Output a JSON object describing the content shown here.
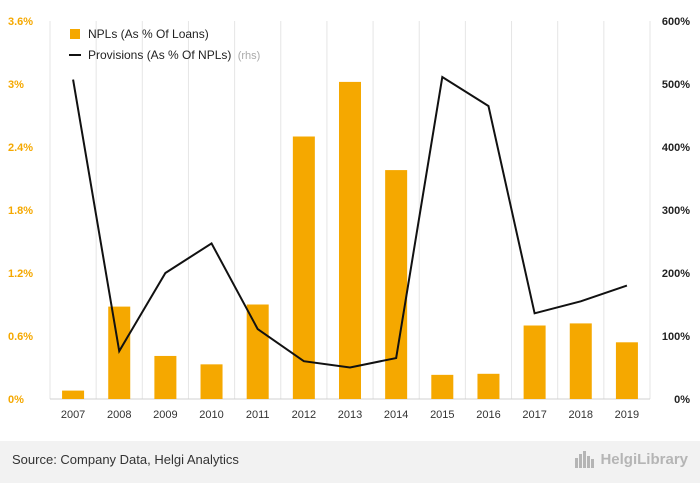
{
  "chart_data": {
    "type": "bar+line",
    "categories": [
      "2007",
      "2008",
      "2009",
      "2010",
      "2011",
      "2012",
      "2013",
      "2014",
      "2015",
      "2016",
      "2017",
      "2018",
      "2019"
    ],
    "series": [
      {
        "name": "NPLs (As % Of Loans)",
        "type": "bar",
        "axis": "left",
        "color": "#f5a800",
        "values": [
          0.08,
          0.88,
          0.41,
          0.33,
          0.9,
          2.5,
          3.02,
          2.18,
          0.23,
          0.24,
          0.7,
          0.72,
          0.54
        ]
      },
      {
        "name": "Provisions (As % Of NPLs)",
        "name_suffix": "(rhs)",
        "type": "line",
        "axis": "right",
        "color": "#111111",
        "values": [
          507,
          76,
          200,
          247,
          111,
          60,
          50,
          65,
          511,
          465,
          136,
          155,
          180
        ]
      }
    ],
    "y_left": {
      "min": 0,
      "max": 3.6,
      "ticks": [
        "0%",
        "0.6%",
        "1.2%",
        "1.8%",
        "2.4%",
        "3%",
        "3.6%"
      ]
    },
    "y_right": {
      "min": 0,
      "max": 600,
      "ticks": [
        "0%",
        "100%",
        "200%",
        "300%",
        "400%",
        "500%",
        "600%"
      ]
    },
    "legend_position": "top-left",
    "grid": "vertical"
  },
  "footer": {
    "source": "Source: Company Data, Helgi Analytics",
    "brand": "HelgiLibrary",
    "brand_icon": "city-skyline-icon"
  }
}
